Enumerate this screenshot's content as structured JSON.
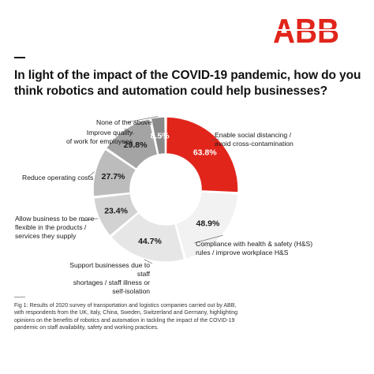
{
  "brand": {
    "logo_text": "ABB",
    "logo_color": "#e1251b"
  },
  "title": "In light of the impact of the COVID-19 pandemic, how do you think robotics and automation could help businesses?",
  "chart_data": {
    "type": "pie",
    "donut": true,
    "segments": [
      {
        "label": "Enable social distancing / avoid cross-contamination",
        "value": 63.8,
        "value_label": "63.8%",
        "color": "#e1251b",
        "text_color": "#ffffff"
      },
      {
        "label": "Compliance with health & safety (H&S) rules / improve workplace H&S",
        "value": 48.9,
        "value_label": "48.9%",
        "color": "#f2f2f2",
        "text_color": "#1a1a1a"
      },
      {
        "label": "Support businesses due to staff shortages / staff illness or self-isolation",
        "value": 44.7,
        "value_label": "44.7%",
        "color": "#e6e6e6",
        "text_color": "#1a1a1a"
      },
      {
        "label": "Allow business to be more flexible in the products / services they supply",
        "value": 23.4,
        "value_label": "23.4%",
        "color": "#d2d2d2",
        "text_color": "#1a1a1a"
      },
      {
        "label": "Reduce operating costs",
        "value": 27.7,
        "value_label": "27.7%",
        "color": "#bcbcbc",
        "text_color": "#1a1a1a"
      },
      {
        "label": "Improve quality of work for employees",
        "value": 29.8,
        "value_label": "29.8%",
        "color": "#a4a4a4",
        "text_color": "#1a1a1a"
      },
      {
        "label": "None of the above",
        "value": 8.5,
        "value_label": "8.5%",
        "color": "#8a8a8a",
        "text_color": "#ffffff"
      }
    ]
  },
  "labels": {
    "l0": [
      "Enable social distancing /",
      "avoid cross-contamination"
    ],
    "l1": [
      "Compliance with health & safety (H&S)",
      "rules / improve workplace H&S"
    ],
    "l2": [
      "Support businesses due to staff",
      "shortages / staff illness or",
      "self-isolation"
    ],
    "l3": [
      "Allow business to be more",
      "flexible in the products /",
      "services they supply"
    ],
    "l4": [
      "Reduce operating costs"
    ],
    "l5": [
      "Improve quality",
      "of work for employees"
    ],
    "l6": [
      "None of the above"
    ]
  },
  "caption": "Fig 1: Results of 2020 survey of transportation and logistics companies carried out by ABB, with respondents from the UK, Italy, China, Sweden, Switzerland and Germany, highlighting opinions on the benefits of robotics and automation in tackling the impact of the COVID-19 pandemic on staff availability, safety and working practices."
}
